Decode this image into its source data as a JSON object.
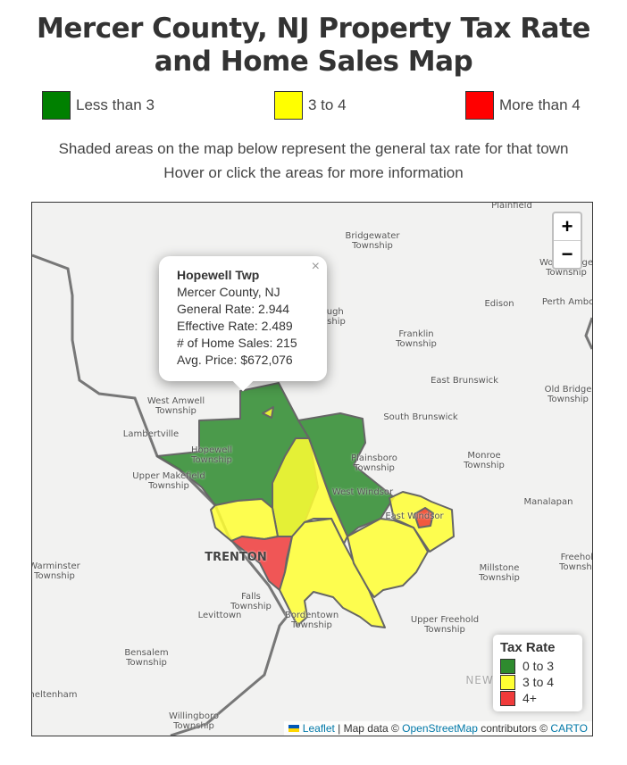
{
  "title": "Mercer County, NJ Property Tax Rate and Home Sales Map",
  "key": [
    {
      "label": "Less than 3",
      "color": "#008000"
    },
    {
      "label": "3 to 4",
      "color": "#ffff00"
    },
    {
      "label": "More than 4",
      "color": "#ff0000"
    }
  ],
  "subtitle1": "Shaded areas on the map below represent the general tax rate for that town",
  "subtitle2": "Hover or click the areas for more information",
  "map": {
    "zoom_in": "+",
    "zoom_out": "−",
    "popup": {
      "name": "Hopewell Twp",
      "county": "Mercer County, NJ",
      "general_rate": "General Rate: 2.944",
      "effective_rate": "Effective Rate: 2.489",
      "home_sales": "# of Home Sales: 215",
      "avg_price": "Avg. Price: $672,076",
      "close": "×"
    },
    "place_labels": [
      "Plainfield",
      "Bridgewater Township",
      "Edison",
      "Perth Amboy",
      "Woodbridge Township",
      "borough Township",
      "Franklin Township",
      "East Brunswick",
      "Old Bridge Township",
      "West Amwell Township",
      "South Brunswick",
      "Lambertville",
      "Hopewell Township",
      "Plainsboro Township",
      "Monroe Township",
      "Upper Makefield Township",
      "West Windsor",
      "East Windsor",
      "Manalapan",
      "TRENTON",
      "Millstone Township",
      "Freehold Township",
      "Falls Township",
      "Levittown",
      "Bordentown Township",
      "Upper Freehold Township",
      "Bensalem Township",
      "Willingboro Township",
      "Cheltenham",
      "NEW JE",
      "Warminster Township"
    ],
    "legend": {
      "title": "Tax Rate",
      "items": [
        {
          "label": "0 to 3",
          "color": "#2e8b2e"
        },
        {
          "label": "3 to 4",
          "color": "#ffff33"
        },
        {
          "label": "4+",
          "color": "#f03b3b"
        }
      ]
    },
    "attribution": {
      "leaflet": "Leaflet",
      "sep": " | Map data © ",
      "osm": "OpenStreetMap",
      "mid": " contributors © ",
      "carto": "CARTO"
    }
  }
}
